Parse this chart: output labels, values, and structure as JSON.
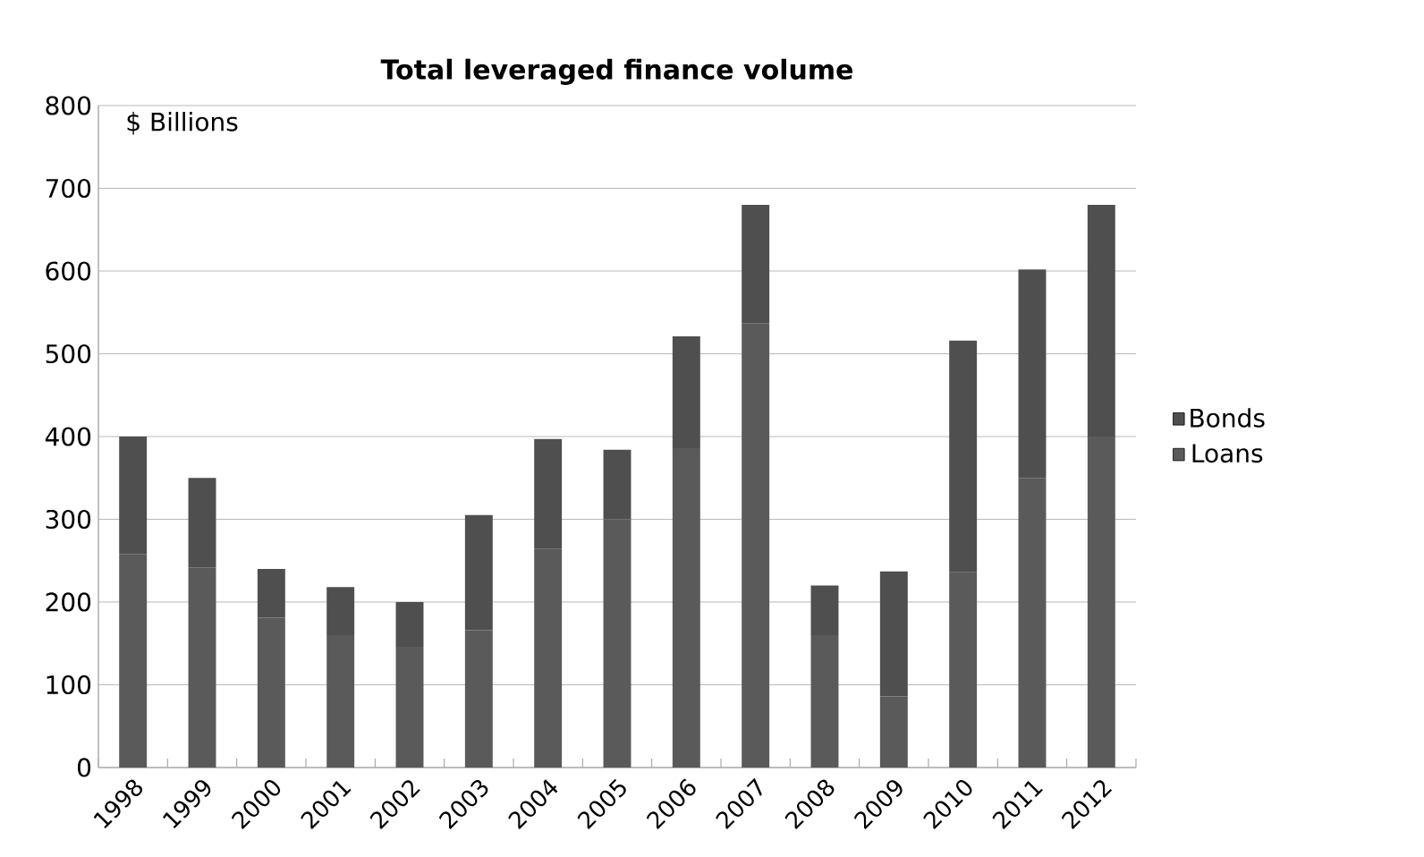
{
  "chart_data": {
    "type": "bar",
    "title": "Total leveraged finance volume",
    "ylabel": "$ Billions",
    "stacked": true,
    "categories": [
      "1998",
      "1999",
      "2000",
      "2001",
      "2002",
      "2003",
      "2004",
      "2005",
      "2006",
      "2007",
      "2008",
      "2009",
      "2010",
      "2011",
      "2012"
    ],
    "series": [
      {
        "name": "Loans",
        "color": "#5a5a5a",
        "values": [
          258,
          242,
          181,
          160,
          146,
          166,
          264,
          300,
          386,
          537,
          160,
          86,
          236,
          350,
          400
        ]
      },
      {
        "name": "Bonds",
        "color": "#4f4f4f",
        "values": [
          142,
          108,
          59,
          58,
          54,
          139,
          133,
          84,
          135,
          143,
          60,
          151,
          280,
          252,
          280
        ]
      }
    ],
    "ylim": [
      0,
      800
    ],
    "yticks": [
      0,
      100,
      200,
      300,
      400,
      500,
      600,
      700,
      800
    ],
    "grid": "y",
    "legend": "right"
  }
}
